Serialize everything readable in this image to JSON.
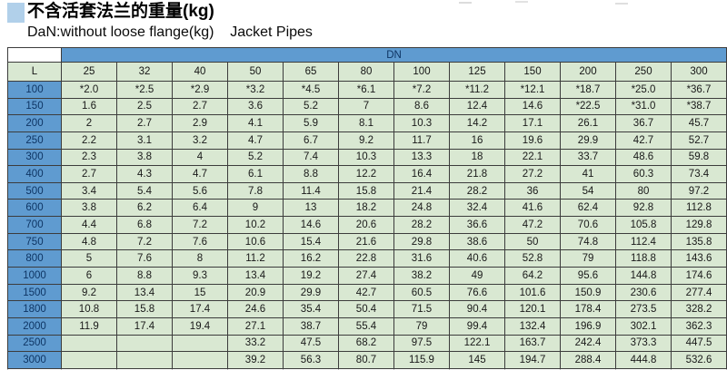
{
  "header": {
    "title": "不含活套法兰的重量(kg)",
    "subtitle": "DaN:without loose flange(kg)    Jacket Pipes"
  },
  "table": {
    "group_header": "DN",
    "row_header": "L",
    "columns": [
      "25",
      "32",
      "40",
      "50",
      "65",
      "80",
      "100",
      "125",
      "150",
      "200",
      "250",
      "300"
    ],
    "rows": [
      {
        "l": "100",
        "values": [
          "*2.0",
          "*2.5",
          "*2.9",
          "*3.2",
          "*4.5",
          "*6.1",
          "*7.2",
          "*11.2",
          "*12.1",
          "*18.7",
          "*25.0",
          "*36.7"
        ]
      },
      {
        "l": "150",
        "values": [
          "1.6",
          "2.5",
          "2.7",
          "3.6",
          "5.2",
          "7",
          "8.6",
          "12.4",
          "14.6",
          "*22.5",
          "*31.0",
          "*38.7"
        ]
      },
      {
        "l": "200",
        "values": [
          "2",
          "2.7",
          "2.9",
          "4.1",
          "5.9",
          "8.1",
          "10.3",
          "14.2",
          "17.1",
          "26.1",
          "36.7",
          "45.7"
        ]
      },
      {
        "l": "250",
        "values": [
          "2.2",
          "3.1",
          "3.2",
          "4.7",
          "6.7",
          "9.2",
          "11.7",
          "16",
          "19.6",
          "29.9",
          "42.7",
          "52.7"
        ]
      },
      {
        "l": "300",
        "values": [
          "2.3",
          "3.8",
          "4",
          "5.2",
          "7.4",
          "10.3",
          "13.3",
          "18",
          "22.1",
          "33.7",
          "48.6",
          "59.8"
        ]
      },
      {
        "l": "400",
        "values": [
          "2.7",
          "4.3",
          "4.7",
          "6.1",
          "8.8",
          "12.2",
          "16.4",
          "21.8",
          "27.2",
          "41",
          "60.3",
          "73.4"
        ]
      },
      {
        "l": "500",
        "values": [
          "3.4",
          "5.4",
          "5.6",
          "7.8",
          "11.4",
          "15.8",
          "21.4",
          "28.2",
          "36",
          "54",
          "80",
          "97.2"
        ]
      },
      {
        "l": "600",
        "values": [
          "3.8",
          "6.2",
          "6.4",
          "9",
          "13",
          "18.2",
          "24.8",
          "32.4",
          "41.6",
          "62.4",
          "92.8",
          "112.8"
        ]
      },
      {
        "l": "700",
        "values": [
          "4.4",
          "6.8",
          "7.2",
          "10.2",
          "14.6",
          "20.6",
          "28.2",
          "36.6",
          "47.2",
          "70.6",
          "105.8",
          "129.8"
        ]
      },
      {
        "l": "750",
        "values": [
          "4.8",
          "7.2",
          "7.6",
          "10.6",
          "15.4",
          "21.6",
          "29.8",
          "38.6",
          "50",
          "74.8",
          "112.4",
          "135.8"
        ]
      },
      {
        "l": "800",
        "values": [
          "5",
          "7.6",
          "8",
          "11.2",
          "16.2",
          "22.8",
          "31.6",
          "40.6",
          "52.8",
          "79",
          "118.8",
          "143.6"
        ]
      },
      {
        "l": "1000",
        "values": [
          "6",
          "8.8",
          "9.3",
          "13.4",
          "19.2",
          "27.4",
          "38.2",
          "49",
          "64.2",
          "95.6",
          "144.8",
          "174.6"
        ]
      },
      {
        "l": "1500",
        "values": [
          "9.2",
          "13.4",
          "15",
          "20.9",
          "29.9",
          "42.7",
          "60.5",
          "76.6",
          "101.6",
          "150.9",
          "230.6",
          "277.4"
        ]
      },
      {
        "l": "1800",
        "values": [
          "10.8",
          "15.8",
          "17.4",
          "24.6",
          "35.4",
          "50.4",
          "71.5",
          "90.4",
          "120.1",
          "178.4",
          "273.5",
          "328.2"
        ]
      },
      {
        "l": "2000",
        "values": [
          "11.9",
          "17.4",
          "19.4",
          "27.1",
          "38.7",
          "55.4",
          "79",
          "99.4",
          "132.4",
          "196.9",
          "302.1",
          "362.3"
        ]
      },
      {
        "l": "2500",
        "values": [
          "",
          "",
          "",
          "33.2",
          "47.5",
          "68.2",
          "97.5",
          "122.1",
          "163.7",
          "242.4",
          "373.3",
          "447.5"
        ]
      },
      {
        "l": "3000",
        "values": [
          "",
          "",
          "",
          "39.2",
          "56.3",
          "80.7",
          "115.9",
          "145",
          "194.7",
          "288.4",
          "444.8",
          "532.6"
        ]
      }
    ]
  },
  "colors": {
    "header_blue": "#5f9bd0",
    "cell_green": "#d9e8d2",
    "header_text_navy": "#0e3564",
    "title_marker_blue": "#b1d0ea",
    "grid_line": "#3c3c3c"
  }
}
